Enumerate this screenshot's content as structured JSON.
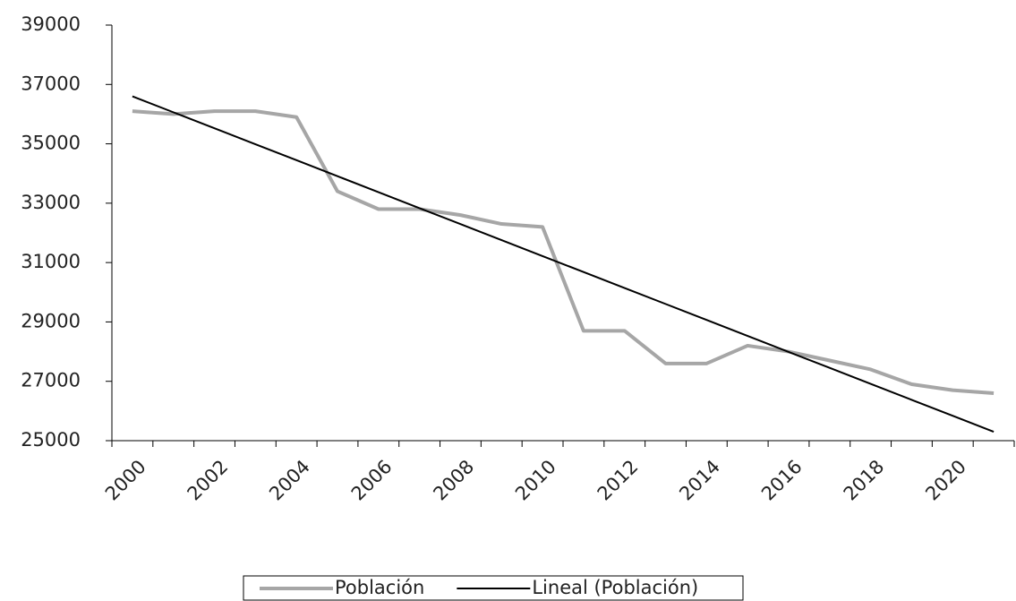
{
  "chart_data": {
    "type": "line",
    "categories": [
      "2000",
      null,
      "2002",
      null,
      "2004",
      null,
      "2006",
      null,
      "2008",
      null,
      "2010",
      null,
      "2012",
      null,
      "2014",
      null,
      "2016",
      null,
      "2018",
      null,
      "2020",
      null
    ],
    "series": [
      {
        "name": "Población",
        "color": "#a6a6a6",
        "values": [
          36100,
          36000,
          36100,
          36100,
          35900,
          33400,
          32800,
          32800,
          32600,
          32300,
          32200,
          28700,
          28700,
          27600,
          27600,
          28200,
          28000,
          27700,
          27400,
          26900,
          26700,
          26600
        ]
      },
      {
        "name": "Lineal (Población)",
        "color": "#000000",
        "values": [
          36600,
          36062,
          35524,
          34986,
          34448,
          33910,
          33371,
          32833,
          32295,
          31757,
          31219,
          30681,
          30143,
          29605,
          29067,
          28529,
          27990,
          27452,
          26914,
          26376,
          25838,
          25300
        ]
      }
    ],
    "ylim": [
      25000,
      39000
    ],
    "yticks": [
      25000,
      27000,
      29000,
      31000,
      33000,
      35000,
      37000,
      39000
    ],
    "legend": "bottom",
    "grid": false
  }
}
